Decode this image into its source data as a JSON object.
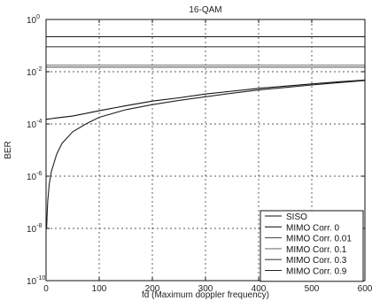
{
  "chart_data": {
    "type": "line",
    "title": "16-QAM",
    "xlabel": "fd (Maximum doppler frequency)",
    "ylabel": "BER",
    "xlim": [
      0,
      600
    ],
    "ylim_exp": [
      -10,
      0
    ],
    "yscale": "log",
    "xticks": [
      0,
      100,
      200,
      300,
      400,
      500,
      600
    ],
    "xtick_labels": [
      "0",
      "100",
      "200",
      "300",
      "400",
      "500",
      "600"
    ],
    "yticks": [
      1e-10,
      1e-08,
      1e-06,
      0.0001,
      0.01,
      1
    ],
    "ytick_base": "10",
    "ytick_exponents": [
      "-10",
      "-8",
      "-6",
      "-4",
      "-2",
      "0"
    ],
    "grid": true,
    "legend_position": "bottom-right",
    "series": [
      {
        "name": "SISO",
        "color": "#111111",
        "x": [
          0,
          10,
          20,
          50,
          100,
          150,
          200,
          250,
          300,
          350,
          400,
          450,
          500,
          550,
          600
        ],
        "y": [
          0.00015,
          0.00016,
          0.00017,
          0.0002,
          0.00032,
          0.0005,
          0.00075,
          0.001,
          0.0014,
          0.0018,
          0.0023,
          0.0028,
          0.0034,
          0.0041,
          0.0048
        ]
      },
      {
        "name": "MIMO Corr. 0",
        "color": "#222222",
        "x": [
          1,
          3,
          6,
          10,
          20,
          30,
          50,
          75,
          100,
          150,
          200,
          250,
          300,
          350,
          400,
          450,
          500,
          550,
          600
        ],
        "y": [
          1e-08,
          1e-07,
          5e-07,
          1.5e-06,
          7e-06,
          1.8e-05,
          5e-05,
          0.0001,
          0.00018,
          0.00035,
          0.00055,
          0.0008,
          0.0011,
          0.0015,
          0.002,
          0.0025,
          0.0031,
          0.0038,
          0.0046
        ]
      },
      {
        "name": "MIMO Corr. 0.01",
        "color": "#555555",
        "x": [
          0,
          600
        ],
        "y": [
          0.015,
          0.015
        ]
      },
      {
        "name": "MIMO Corr. 0.1",
        "color": "#777777",
        "x": [
          0,
          600
        ],
        "y": [
          0.018,
          0.018
        ]
      },
      {
        "name": "MIMO Corr. 0.3",
        "color": "#444444",
        "x": [
          0,
          600
        ],
        "y": [
          0.09,
          0.09
        ]
      },
      {
        "name": "MIMO Corr. 0.9",
        "color": "#222222",
        "x": [
          0,
          600
        ],
        "y": [
          0.22,
          0.22
        ]
      }
    ]
  }
}
